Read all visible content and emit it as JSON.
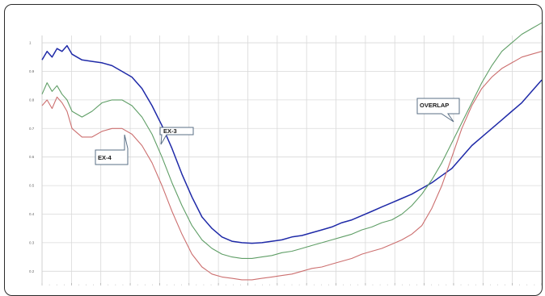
{
  "chart_data": {
    "type": "line",
    "title": "",
    "xlabel": "",
    "ylabel": "",
    "ylim": [
      0.15,
      1.02
    ],
    "xlim": [
      0,
      100
    ],
    "yticks": [
      "0.2",
      "0.3",
      "0.4",
      "0.5",
      "0.6",
      "0.7",
      "0.8",
      "0.9",
      "1"
    ],
    "grid": true,
    "series": [
      {
        "name": "EX-3",
        "color": "#1f2aa8",
        "x": [
          0,
          1,
          2,
          3,
          4,
          5,
          6,
          7,
          8,
          10,
          12,
          14,
          16,
          18,
          20,
          22,
          24,
          26,
          28,
          30,
          32,
          34,
          36,
          38,
          40,
          42,
          44,
          46,
          48,
          50,
          52,
          54,
          56,
          58,
          60,
          62,
          64,
          66,
          68,
          70,
          72,
          74,
          76,
          78,
          80,
          82,
          84,
          86,
          88,
          90,
          92,
          94,
          96,
          98,
          100
        ],
        "y": [
          0.94,
          0.97,
          0.95,
          0.98,
          0.97,
          0.99,
          0.96,
          0.95,
          0.94,
          0.935,
          0.93,
          0.92,
          0.9,
          0.88,
          0.84,
          0.78,
          0.71,
          0.63,
          0.54,
          0.46,
          0.39,
          0.35,
          0.32,
          0.305,
          0.3,
          0.298,
          0.3,
          0.305,
          0.31,
          0.32,
          0.325,
          0.335,
          0.345,
          0.355,
          0.37,
          0.38,
          0.395,
          0.41,
          0.425,
          0.44,
          0.455,
          0.47,
          0.49,
          0.51,
          0.535,
          0.56,
          0.6,
          0.64,
          0.67,
          0.7,
          0.73,
          0.76,
          0.79,
          0.83,
          0.87
        ]
      },
      {
        "name": "",
        "color": "#5f9e66",
        "x": [
          0,
          1,
          2,
          3,
          4,
          5,
          6,
          8,
          10,
          12,
          14,
          16,
          18,
          20,
          22,
          24,
          26,
          28,
          30,
          32,
          34,
          36,
          38,
          40,
          42,
          44,
          46,
          48,
          50,
          52,
          54,
          56,
          58,
          60,
          62,
          64,
          66,
          68,
          70,
          72,
          74,
          76,
          78,
          80,
          82,
          84,
          86,
          88,
          90,
          92,
          94,
          96,
          98,
          100
        ],
        "y": [
          0.82,
          0.86,
          0.83,
          0.85,
          0.82,
          0.8,
          0.76,
          0.74,
          0.76,
          0.79,
          0.8,
          0.8,
          0.78,
          0.74,
          0.68,
          0.6,
          0.51,
          0.43,
          0.36,
          0.31,
          0.28,
          0.26,
          0.25,
          0.245,
          0.245,
          0.25,
          0.255,
          0.265,
          0.27,
          0.28,
          0.29,
          0.3,
          0.31,
          0.32,
          0.33,
          0.345,
          0.355,
          0.37,
          0.38,
          0.4,
          0.43,
          0.47,
          0.52,
          0.58,
          0.65,
          0.72,
          0.79,
          0.86,
          0.92,
          0.97,
          1.0,
          1.03,
          1.05,
          1.07
        ]
      },
      {
        "name": "",
        "color": "#cc6f6f",
        "x": [
          0,
          1,
          2,
          3,
          4,
          5,
          6,
          8,
          10,
          12,
          14,
          16,
          18,
          20,
          22,
          24,
          26,
          28,
          30,
          32,
          34,
          36,
          38,
          40,
          42,
          44,
          46,
          48,
          50,
          52,
          54,
          56,
          58,
          60,
          62,
          64,
          66,
          68,
          70,
          72,
          74,
          76,
          78,
          80,
          82,
          84,
          86,
          88,
          90,
          92,
          94,
          96,
          98,
          100
        ],
        "y": [
          0.78,
          0.8,
          0.77,
          0.81,
          0.79,
          0.76,
          0.7,
          0.67,
          0.67,
          0.69,
          0.7,
          0.7,
          0.68,
          0.64,
          0.58,
          0.5,
          0.41,
          0.33,
          0.26,
          0.215,
          0.19,
          0.18,
          0.175,
          0.17,
          0.17,
          0.175,
          0.18,
          0.185,
          0.19,
          0.2,
          0.21,
          0.215,
          0.225,
          0.235,
          0.245,
          0.26,
          0.27,
          0.28,
          0.295,
          0.31,
          0.33,
          0.36,
          0.42,
          0.5,
          0.6,
          0.7,
          0.78,
          0.84,
          0.88,
          0.91,
          0.93,
          0.95,
          0.96,
          0.97
        ]
      }
    ],
    "annotations": [
      {
        "text": "EX-3",
        "pointer_x": 28,
        "pointer_y": 0.58
      },
      {
        "text": "EX-4",
        "pointer_x": 22,
        "pointer_y": 0.58
      },
      {
        "text": "OVERLAP",
        "pointer_x": 81,
        "pointer_y": 0.73
      }
    ]
  }
}
